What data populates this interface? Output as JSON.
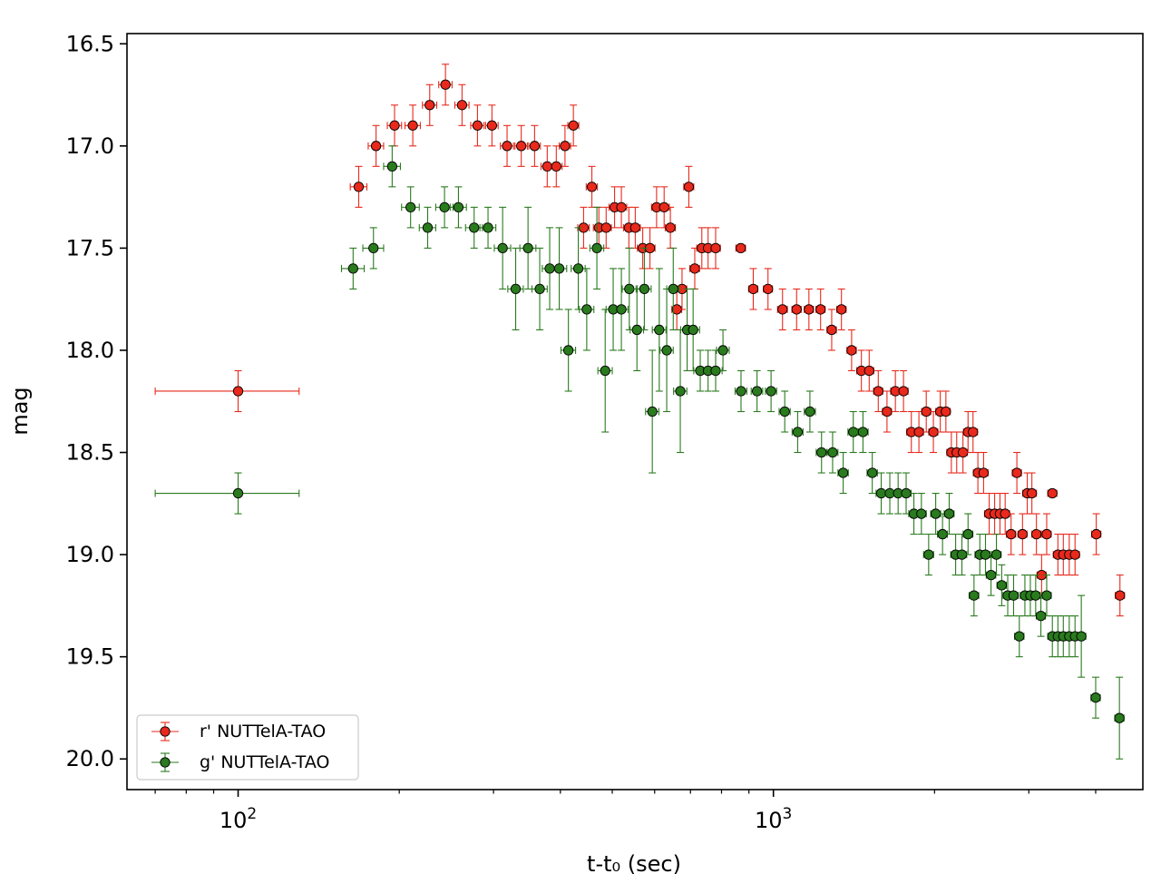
{
  "chart_data": {
    "type": "scatter",
    "xscale": "log",
    "yaxis_inverted": true,
    "xlim": [
      62,
      4900
    ],
    "ylim": [
      20.15,
      16.45
    ],
    "xlabel": "t-t₀ (sec)",
    "ylabel": "mag",
    "yticks": [
      "16.5",
      "17.0",
      "17.5",
      "18.0",
      "18.5",
      "19.0",
      "19.5",
      "20.0"
    ],
    "yticks_values": [
      16.5,
      17.0,
      17.5,
      18.0,
      18.5,
      19.0,
      19.5,
      20.0
    ],
    "xticks_values": [
      100,
      1000
    ],
    "xticks_base": "10",
    "xticks_exp": [
      "2",
      "3"
    ],
    "grid": false,
    "legend_position": "lower-left",
    "series": [
      {
        "name": "r' NUTTelA-TAO",
        "color": "#e8291c",
        "points": [
          [
            100,
            18.2,
            30,
            0.1
          ],
          [
            168,
            17.2,
            6,
            0.1
          ],
          [
            181,
            17.0,
            6,
            0.1
          ],
          [
            196,
            16.9,
            6,
            0.1
          ],
          [
            212,
            16.9,
            7,
            0.1
          ],
          [
            228,
            16.8,
            7,
            0.1
          ],
          [
            244,
            16.7,
            7,
            0.1
          ],
          [
            262,
            16.8,
            8,
            0.1
          ],
          [
            280,
            16.9,
            8,
            0.1
          ],
          [
            298,
            16.9,
            8,
            0.1
          ],
          [
            318,
            17.0,
            9,
            0.1
          ],
          [
            338,
            17.0,
            9,
            0.1
          ],
          [
            358,
            17.0,
            9,
            0.1
          ],
          [
            378,
            17.1,
            10,
            0.1
          ],
          [
            393,
            17.1,
            10,
            0.1
          ],
          [
            408,
            17.0,
            10,
            0.1
          ],
          [
            423,
            16.9,
            10,
            0.1
          ],
          [
            442,
            17.4,
            11,
            0.1
          ],
          [
            458,
            17.2,
            11,
            0.1
          ],
          [
            472,
            17.4,
            11,
            0.1
          ],
          [
            487,
            17.4,
            11,
            0.1
          ],
          [
            505,
            17.3,
            12,
            0.1
          ],
          [
            520,
            17.3,
            12,
            0.1
          ],
          [
            537,
            17.4,
            12,
            0.1
          ],
          [
            552,
            17.4,
            12,
            0.1
          ],
          [
            570,
            17.5,
            13,
            0.1
          ],
          [
            588,
            17.5,
            13,
            0.1
          ],
          [
            605,
            17.3,
            13,
            0.1
          ],
          [
            625,
            17.3,
            14,
            0.1
          ],
          [
            642,
            17.4,
            14,
            0.1
          ],
          [
            660,
            17.8,
            14,
            0.1
          ],
          [
            675,
            17.7,
            14,
            0.1
          ],
          [
            695,
            17.2,
            15,
            0.1
          ],
          [
            713,
            17.6,
            15,
            0.1
          ],
          [
            735,
            17.5,
            16,
            0.1
          ],
          [
            755,
            17.5,
            16,
            0.1
          ],
          [
            780,
            17.5,
            16,
            0.1
          ],
          [
            869,
            17.5,
            18,
            0.01
          ],
          [
            917,
            17.7,
            18,
            0.1
          ],
          [
            977,
            17.7,
            19,
            0.1
          ],
          [
            1040,
            17.8,
            22,
            0.1
          ],
          [
            1105,
            17.8,
            22,
            0.1
          ],
          [
            1165,
            17.8,
            23,
            0.1
          ],
          [
            1225,
            17.8,
            24,
            0.1
          ],
          [
            1285,
            17.9,
            26,
            0.1
          ],
          [
            1340,
            17.8,
            27,
            0.1
          ],
          [
            1400,
            18.0,
            28,
            0.1
          ],
          [
            1460,
            18.1,
            29,
            0.1
          ],
          [
            1510,
            18.1,
            30,
            0.1
          ],
          [
            1570,
            18.2,
            31,
            0.1
          ],
          [
            1630,
            18.3,
            32,
            0.1
          ],
          [
            1690,
            18.2,
            34,
            0.1
          ],
          [
            1750,
            18.2,
            35,
            0.1
          ],
          [
            1810,
            18.4,
            36,
            0.1
          ],
          [
            1870,
            18.4,
            37,
            0.1
          ],
          [
            1930,
            18.3,
            38,
            0.1
          ],
          [
            1990,
            18.4,
            39,
            0.1
          ],
          [
            2050,
            18.3,
            40,
            0.1
          ],
          [
            2100,
            18.3,
            40,
            0.1
          ],
          [
            2150,
            18.5,
            42,
            0.1
          ],
          [
            2200,
            18.5,
            43,
            0.1
          ],
          [
            2260,
            18.5,
            44,
            0.1
          ],
          [
            2310,
            18.4,
            45,
            0.1
          ],
          [
            2360,
            18.4,
            46,
            0.1
          ],
          [
            2410,
            18.6,
            47,
            0.1
          ],
          [
            2470,
            18.6,
            48,
            0.1
          ],
          [
            2530,
            18.8,
            50,
            0.1
          ],
          [
            2590,
            18.8,
            50,
            0.1
          ],
          [
            2650,
            18.8,
            52,
            0.1
          ],
          [
            2710,
            18.8,
            52,
            0.1
          ],
          [
            2780,
            18.9,
            55,
            0.1
          ],
          [
            2850,
            18.6,
            56,
            0.1
          ],
          [
            2920,
            18.9,
            57,
            0.1
          ],
          [
            2980,
            18.7,
            58,
            0.1
          ],
          [
            3040,
            18.7,
            60,
            0.1
          ],
          [
            3100,
            18.9,
            61,
            0.1
          ],
          [
            3170,
            19.1,
            62,
            0.1
          ],
          [
            3240,
            18.9,
            63,
            0.1
          ],
          [
            3320,
            18.7,
            65,
            0.01
          ],
          [
            3400,
            19.0,
            67,
            0.1
          ],
          [
            3480,
            19.0,
            68,
            0.1
          ],
          [
            3570,
            19.0,
            70,
            0.1
          ],
          [
            3660,
            19.0,
            70,
            0.1
          ],
          [
            4010,
            18.9,
            80,
            0.1
          ],
          [
            4440,
            19.2,
            88,
            0.1
          ]
        ]
      },
      {
        "name": "g' NUTTelA-TAO",
        "color": "#2a7a1e",
        "points": [
          [
            100,
            18.7,
            30,
            0.1
          ],
          [
            164,
            17.6,
            8,
            0.1
          ],
          [
            179,
            17.5,
            8,
            0.1
          ],
          [
            194,
            17.1,
            7,
            0.1
          ],
          [
            210,
            17.3,
            8,
            0.1
          ],
          [
            226,
            17.4,
            8,
            0.1
          ],
          [
            243,
            17.3,
            9,
            0.1
          ],
          [
            258,
            17.3,
            9,
            0.1
          ],
          [
            276,
            17.4,
            10,
            0.1
          ],
          [
            293,
            17.4,
            10,
            0.1
          ],
          [
            312,
            17.5,
            11,
            0.2
          ],
          [
            330,
            17.7,
            11,
            0.2
          ],
          [
            348,
            17.5,
            12,
            0.2
          ],
          [
            366,
            17.7,
            12,
            0.2
          ],
          [
            382,
            17.6,
            12,
            0.2
          ],
          [
            398,
            17.6,
            13,
            0.2
          ],
          [
            414,
            18.0,
            13,
            0.2
          ],
          [
            432,
            17.6,
            13,
            0.2
          ],
          [
            448,
            17.8,
            14,
            0.2
          ],
          [
            468,
            17.5,
            14,
            0.2
          ],
          [
            485,
            18.1,
            15,
            0.3
          ],
          [
            502,
            17.8,
            15,
            0.2
          ],
          [
            520,
            17.8,
            15,
            0.2
          ],
          [
            538,
            17.7,
            16,
            0.2
          ],
          [
            556,
            17.9,
            16,
            0.2
          ],
          [
            574,
            17.7,
            17,
            0.2
          ],
          [
            594,
            18.3,
            17,
            0.3
          ],
          [
            612,
            17.9,
            18,
            0.3
          ],
          [
            632,
            18.0,
            18,
            0.3
          ],
          [
            650,
            17.7,
            18,
            0.2
          ],
          [
            670,
            18.2,
            19,
            0.3
          ],
          [
            690,
            17.9,
            19,
            0.2
          ],
          [
            708,
            17.9,
            20,
            0.2
          ],
          [
            730,
            18.1,
            20,
            0.1
          ],
          [
            755,
            18.1,
            21,
            0.1
          ],
          [
            780,
            18.1,
            22,
            0.1
          ],
          [
            805,
            18.0,
            22,
            0.1
          ],
          [
            870,
            18.2,
            22,
            0.1
          ],
          [
            932,
            18.2,
            23,
            0.1
          ],
          [
            990,
            18.2,
            24,
            0.1
          ],
          [
            1050,
            18.3,
            25,
            0.1
          ],
          [
            1110,
            18.4,
            26,
            0.1
          ],
          [
            1170,
            18.3,
            28,
            0.1
          ],
          [
            1230,
            18.5,
            28,
            0.1
          ],
          [
            1290,
            18.5,
            30,
            0.1
          ],
          [
            1350,
            18.6,
            30,
            0.1
          ],
          [
            1410,
            18.4,
            32,
            0.1
          ],
          [
            1470,
            18.4,
            33,
            0.1
          ],
          [
            1530,
            18.6,
            34,
            0.1
          ],
          [
            1590,
            18.7,
            35,
            0.1
          ],
          [
            1650,
            18.7,
            36,
            0.1
          ],
          [
            1710,
            18.7,
            37,
            0.1
          ],
          [
            1770,
            18.7,
            38,
            0.1
          ],
          [
            1830,
            18.8,
            40,
            0.1
          ],
          [
            1890,
            18.8,
            40,
            0.1
          ],
          [
            1950,
            19.0,
            42,
            0.1
          ],
          [
            2010,
            18.8,
            43,
            0.1
          ],
          [
            2070,
            18.9,
            44,
            0.1
          ],
          [
            2130,
            18.8,
            45,
            0.1
          ],
          [
            2190,
            19.0,
            46,
            0.1
          ],
          [
            2250,
            19.0,
            47,
            0.1
          ],
          [
            2310,
            18.9,
            48,
            0.1
          ],
          [
            2370,
            19.2,
            49,
            0.1
          ],
          [
            2430,
            19.0,
            50,
            0.1
          ],
          [
            2490,
            19.0,
            51,
            0.1
          ],
          [
            2550,
            19.1,
            52,
            0.1
          ],
          [
            2610,
            19.0,
            53,
            0.1
          ],
          [
            2670,
            19.15,
            54,
            0.1
          ],
          [
            2740,
            19.2,
            56,
            0.1
          ],
          [
            2810,
            19.2,
            57,
            0.1
          ],
          [
            2880,
            19.4,
            58,
            0.1
          ],
          [
            2950,
            19.2,
            59,
            0.1
          ],
          [
            3020,
            19.2,
            60,
            0.1
          ],
          [
            3090,
            19.2,
            61,
            0.1
          ],
          [
            3160,
            19.3,
            62,
            0.1
          ],
          [
            3240,
            19.2,
            64,
            0.1
          ],
          [
            3320,
            19.4,
            65,
            0.1
          ],
          [
            3400,
            19.4,
            67,
            0.1
          ],
          [
            3480,
            19.4,
            68,
            0.1
          ],
          [
            3570,
            19.4,
            70,
            0.1
          ],
          [
            3660,
            19.4,
            72,
            0.1
          ],
          [
            3760,
            19.4,
            74,
            0.2
          ],
          [
            4000,
            19.7,
            80,
            0.1
          ],
          [
            4430,
            19.8,
            88,
            0.2
          ]
        ]
      }
    ]
  }
}
